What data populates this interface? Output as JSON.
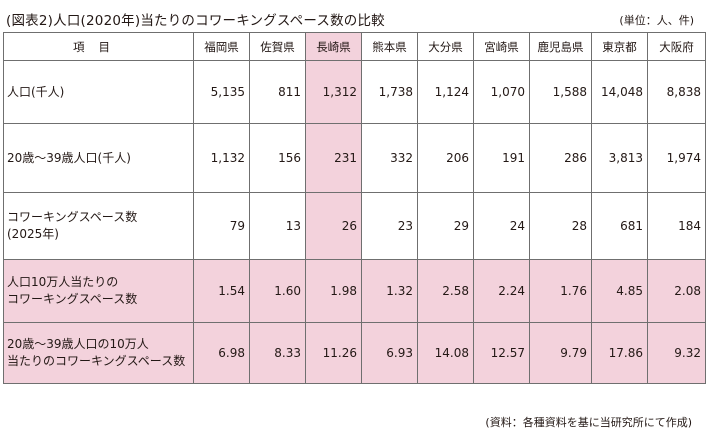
{
  "title": "(図表2)人口(2020年)当たりのコワーキングスペース数の比較",
  "unit": "(単位：人、件)",
  "source": "(資料：各種資料を基に当研究所にて作成)",
  "highlight_color": "#f3d2dc",
  "table": {
    "corner_header": "項目",
    "columns": [
      "福岡県",
      "佐賀県",
      "長崎県",
      "熊本県",
      "大分県",
      "宮崎県",
      "鹿児島県",
      "東京都",
      "大阪府"
    ],
    "highlight_column": 2,
    "rows": [
      {
        "label": [
          "人口(千人)"
        ],
        "values": [
          "5,135",
          "811",
          "1,312",
          "1,738",
          "1,124",
          "1,070",
          "1,588",
          "14,048",
          "8,838"
        ]
      },
      {
        "label": [
          "20歳～39歳人口(千人)"
        ],
        "values": [
          "1,132",
          "156",
          "231",
          "332",
          "206",
          "191",
          "286",
          "3,813",
          "1,974"
        ]
      },
      {
        "label": [
          "コワーキングスペース数",
          "(2025年)"
        ],
        "values": [
          "79",
          "13",
          "26",
          "23",
          "29",
          "24",
          "28",
          "681",
          "184"
        ]
      },
      {
        "label": [
          "人口10万人当たりの",
          "コワーキングスペース数"
        ],
        "values": [
          "1.54",
          "1.60",
          "1.98",
          "1.32",
          "2.58",
          "2.24",
          "1.76",
          "4.85",
          "2.08"
        ]
      },
      {
        "label": [
          "20歳～39歳人口の10万人",
          "当たりのコワーキングスペース数"
        ],
        "values": [
          "6.98",
          "8.33",
          "11.26",
          "6.93",
          "14.08",
          "12.57",
          "9.79",
          "17.86",
          "9.32"
        ]
      }
    ],
    "highlight_rows": [
      3,
      4
    ]
  }
}
